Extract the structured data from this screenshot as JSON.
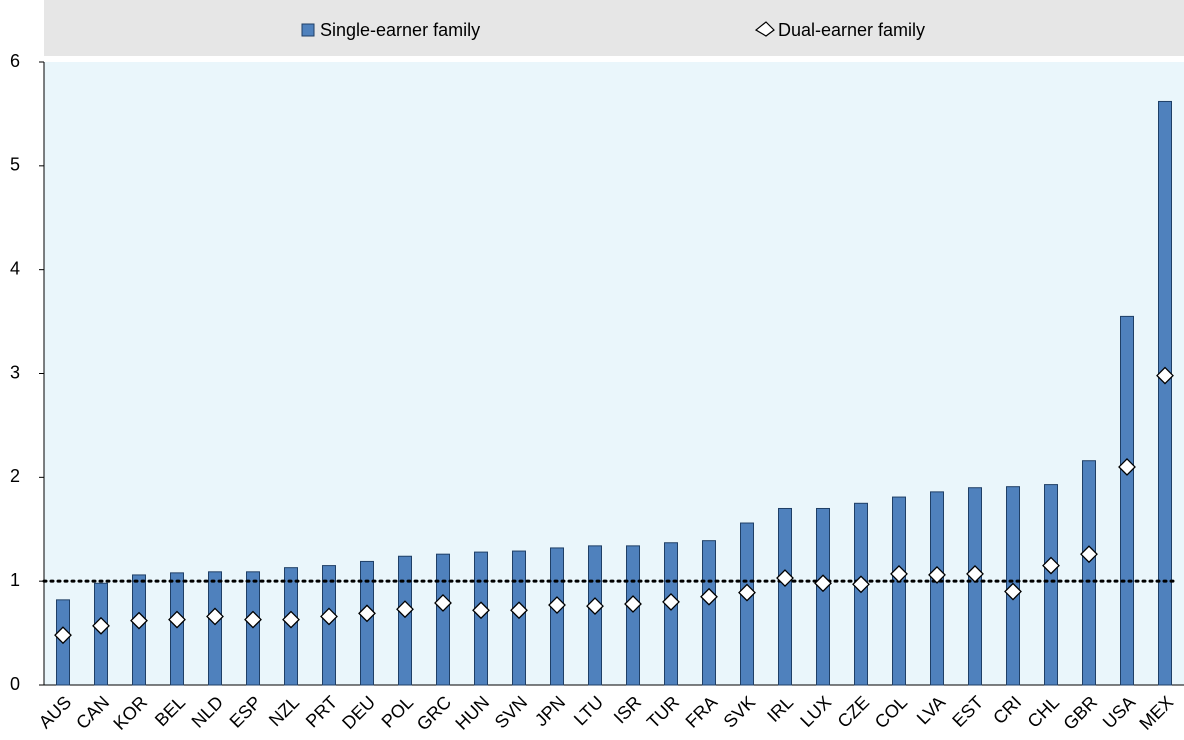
{
  "chart_data": {
    "type": "bar",
    "categories": [
      "AUS",
      "CAN",
      "KOR",
      "BEL",
      "NLD",
      "ESP",
      "NZL",
      "PRT",
      "DEU",
      "POL",
      "GRC",
      "HUN",
      "SVN",
      "JPN",
      "LTU",
      "ISR",
      "TUR",
      "FRA",
      "SVK",
      "IRL",
      "LUX",
      "CZE",
      "COL",
      "LVA",
      "EST",
      "CRI",
      "CHL",
      "GBR",
      "USA",
      "MEX"
    ],
    "series": [
      {
        "name": "Single-earner family",
        "type": "bar",
        "color": "#4f81bd",
        "values": [
          0.82,
          0.98,
          1.06,
          1.08,
          1.09,
          1.09,
          1.13,
          1.15,
          1.19,
          1.24,
          1.26,
          1.28,
          1.29,
          1.32,
          1.34,
          1.34,
          1.37,
          1.39,
          1.56,
          1.7,
          1.7,
          1.75,
          1.81,
          1.86,
          1.9,
          1.91,
          1.93,
          2.16,
          3.55,
          5.62
        ]
      },
      {
        "name": "Dual-earner family",
        "type": "scatter",
        "color": "#ffffff",
        "values": [
          0.48,
          0.57,
          0.62,
          0.63,
          0.66,
          0.63,
          0.63,
          0.66,
          0.69,
          0.73,
          0.79,
          0.72,
          0.72,
          0.77,
          0.76,
          0.78,
          0.8,
          0.85,
          0.89,
          1.03,
          0.98,
          0.97,
          1.07,
          1.06,
          1.07,
          0.9,
          1.15,
          1.26,
          2.1,
          2.98
        ]
      }
    ],
    "reference_line": 1,
    "ylim": [
      0,
      6
    ],
    "yticks": [
      0,
      1,
      2,
      3,
      4,
      5,
      6
    ]
  }
}
